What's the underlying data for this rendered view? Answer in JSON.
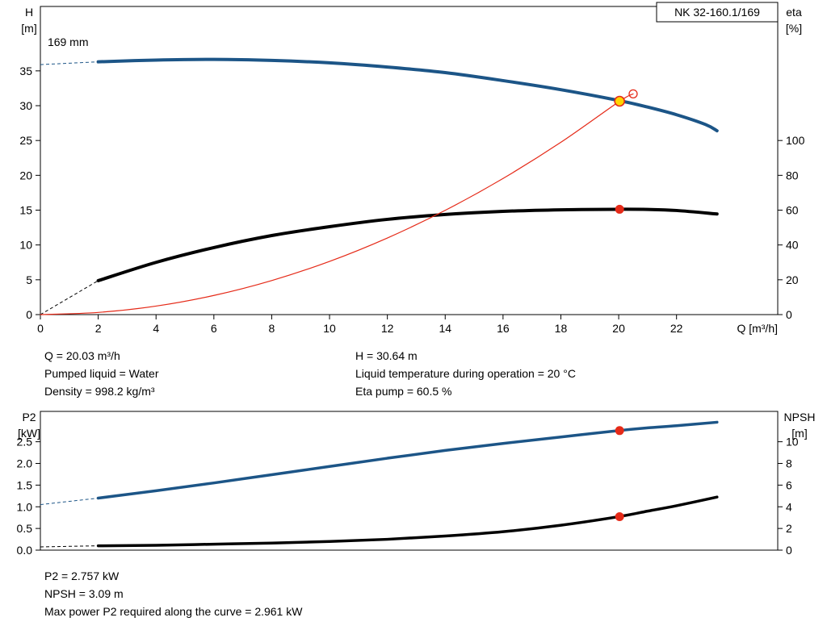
{
  "pump": {
    "model": "NK 32-160.1/169",
    "impeller_label": "169 mm"
  },
  "colors": {
    "blue": "#1c5587",
    "black": "#000000",
    "red": "#e52a18",
    "yellow": "#ffd500",
    "axis": "#000000"
  },
  "info_top": {
    "left": [
      "Q = 20.03 m³/h",
      "Pumped liquid = Water",
      "Density = 998.2 kg/m³"
    ],
    "right": [
      "H = 30.64 m",
      "Liquid temperature during operation = 20 °C",
      "Eta pump = 60.5 %"
    ]
  },
  "info_bottom": [
    "P2 = 2.757 kW",
    "NPSH = 3.09 m",
    "Max power P2 required along the curve = 2.961 kW"
  ],
  "chart_data": [
    {
      "type": "line",
      "title": "NK 32-160.1/169",
      "x_label": "Q [m³/h]",
      "y_left_label": [
        "H",
        "[m]"
      ],
      "y_right_label": [
        "eta",
        "[%]"
      ],
      "x_range": [
        0,
        25.5
      ],
      "y_left_range": [
        0,
        44.25
      ],
      "y_right_range": [
        0,
        177
      ],
      "x_ticks": [
        [
          0,
          "0"
        ],
        [
          2,
          "2"
        ],
        [
          4,
          "4"
        ],
        [
          6,
          "6"
        ],
        [
          8,
          "8"
        ],
        [
          10,
          "10"
        ],
        [
          12,
          "12"
        ],
        [
          14,
          "14"
        ],
        [
          16,
          "16"
        ],
        [
          18,
          "18"
        ],
        [
          20,
          "20"
        ],
        [
          22,
          "22"
        ]
      ],
      "y_left_ticks": [
        [
          0,
          "0"
        ],
        [
          5,
          "5"
        ],
        [
          10,
          "10"
        ],
        [
          15,
          "15"
        ],
        [
          20,
          "20"
        ],
        [
          25,
          "25"
        ],
        [
          30,
          "30"
        ],
        [
          35,
          "35"
        ]
      ],
      "y_right_ticks": [
        [
          0,
          "0"
        ],
        [
          20,
          "20"
        ],
        [
          40,
          "40"
        ],
        [
          60,
          "60"
        ],
        [
          80,
          "80"
        ],
        [
          100,
          "100"
        ]
      ],
      "annotations": [
        {
          "text": "169 mm",
          "x": 0.25,
          "y": 38.6
        }
      ],
      "series": [
        {
          "name": "head-curve",
          "axis": "left",
          "color": "blue",
          "width": 4,
          "dash_lead": [
            [
              0,
              35.9
            ],
            [
              2,
              36.3
            ]
          ],
          "points": [
            [
              2,
              36.3
            ],
            [
              4,
              36.55
            ],
            [
              6,
              36.65
            ],
            [
              8,
              36.5
            ],
            [
              10,
              36.15
            ],
            [
              12,
              35.55
            ],
            [
              14,
              34.75
            ],
            [
              16,
              33.6
            ],
            [
              18,
              32.3
            ],
            [
              20,
              30.75
            ],
            [
              21,
              29.8
            ],
            [
              22,
              28.7
            ],
            [
              23,
              27.3
            ],
            [
              23.4,
              26.4
            ]
          ]
        },
        {
          "name": "efficiency-curve",
          "axis": "right",
          "color": "black",
          "width": 4,
          "dash_lead": [
            [
              0,
              0
            ],
            [
              2,
              19.5
            ]
          ],
          "points": [
            [
              2,
              19.5
            ],
            [
              4,
              30
            ],
            [
              6,
              38.5
            ],
            [
              8,
              45.4
            ],
            [
              10,
              50.5
            ],
            [
              12,
              54.7
            ],
            [
              14,
              57.5
            ],
            [
              16,
              59.3
            ],
            [
              18,
              60.2
            ],
            [
              20,
              60.5
            ],
            [
              21,
              60.4
            ],
            [
              22,
              59.8
            ],
            [
              23.4,
              57.8
            ]
          ]
        },
        {
          "name": "duty-parabola",
          "axis": "left",
          "color": "red",
          "width": 1.2,
          "points": [
            [
              0,
              0
            ],
            [
              2,
              0.31
            ],
            [
              4,
              1.22
            ],
            [
              6,
              2.75
            ],
            [
              8,
              4.89
            ],
            [
              10,
              7.64
            ],
            [
              12,
              11.0
            ],
            [
              14,
              14.97
            ],
            [
              16,
              19.55
            ],
            [
              18,
              24.74
            ],
            [
              20,
              30.55
            ],
            [
              20.5,
              31.7
            ]
          ]
        }
      ],
      "markers": [
        {
          "name": "rated-point-open",
          "axis": "left",
          "x": 20.5,
          "y": 31.7,
          "style": "open"
        },
        {
          "name": "efficiency-point",
          "axis": "right",
          "x": 20.03,
          "y": 60.5,
          "style": "red"
        },
        {
          "name": "duty-point",
          "axis": "left",
          "x": 20.03,
          "y": 30.64,
          "style": "duty"
        }
      ]
    },
    {
      "type": "line",
      "title": "",
      "x_label": "",
      "y_left_label": [
        "P2",
        "[kW]"
      ],
      "y_right_label": [
        "NPSH",
        "[m]"
      ],
      "x_range": [
        0,
        25.5
      ],
      "y_left_range": [
        0,
        3.2
      ],
      "y_right_range": [
        0,
        12.8
      ],
      "x_ticks": [],
      "y_left_ticks": [
        [
          0,
          "0.0"
        ],
        [
          0.5,
          "0.5"
        ],
        [
          1,
          "1.0"
        ],
        [
          1.5,
          "1.5"
        ],
        [
          2,
          "2.0"
        ],
        [
          2.5,
          "2.5"
        ]
      ],
      "y_right_ticks": [
        [
          0,
          "0"
        ],
        [
          2,
          "2"
        ],
        [
          4,
          "4"
        ],
        [
          6,
          "6"
        ],
        [
          8,
          "8"
        ],
        [
          10,
          "10"
        ]
      ],
      "annotations": [],
      "series": [
        {
          "name": "p2-curve",
          "axis": "left",
          "color": "blue",
          "width": 3.5,
          "dash_lead": [
            [
              0,
              1.05
            ],
            [
              2,
              1.2
            ]
          ],
          "points": [
            [
              2,
              1.2
            ],
            [
              4,
              1.37
            ],
            [
              6,
              1.55
            ],
            [
              8,
              1.74
            ],
            [
              10,
              1.93
            ],
            [
              12,
              2.12
            ],
            [
              14,
              2.3
            ],
            [
              16,
              2.46
            ],
            [
              18,
              2.61
            ],
            [
              20,
              2.757
            ],
            [
              21,
              2.82
            ],
            [
              22,
              2.87
            ],
            [
              23.4,
              2.95
            ]
          ]
        },
        {
          "name": "npsh-curve",
          "axis": "right",
          "color": "black",
          "width": 3.5,
          "dash_lead": [
            [
              0,
              0.3
            ],
            [
              2,
              0.4
            ]
          ],
          "points": [
            [
              2,
              0.4
            ],
            [
              4,
              0.45
            ],
            [
              6,
              0.55
            ],
            [
              8,
              0.65
            ],
            [
              10,
              0.8
            ],
            [
              12,
              1.0
            ],
            [
              14,
              1.3
            ],
            [
              16,
              1.7
            ],
            [
              18,
              2.3
            ],
            [
              20,
              3.09
            ],
            [
              21,
              3.6
            ],
            [
              22,
              4.1
            ],
            [
              23.4,
              4.9
            ]
          ]
        }
      ],
      "markers": [
        {
          "name": "p2-point",
          "axis": "left",
          "x": 20.03,
          "y": 2.757,
          "style": "red"
        },
        {
          "name": "npsh-point",
          "axis": "right",
          "x": 20.03,
          "y": 3.09,
          "style": "red"
        }
      ]
    }
  ]
}
